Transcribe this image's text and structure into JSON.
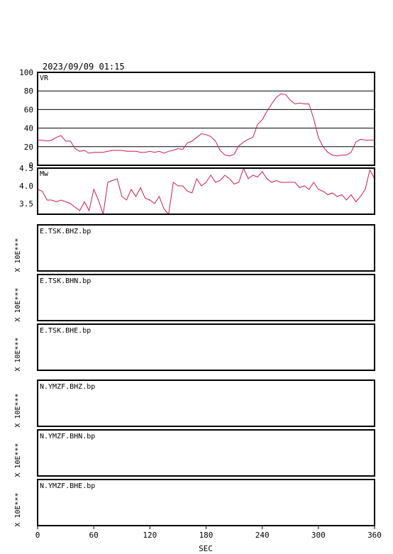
{
  "header": {
    "timestamp": "2023/09/09 01:15"
  },
  "colors": {
    "trace": "#cc1e4a",
    "frame": "#000000",
    "grid": "#000000"
  },
  "chart_data": [
    {
      "type": "line",
      "panel": "vr",
      "label": "VR",
      "ylim": [
        0,
        100
      ],
      "yticks": [
        "100",
        "80",
        "60",
        "40",
        "20",
        "0"
      ],
      "ytick_values": [
        100,
        80,
        60,
        40,
        20,
        0
      ],
      "grid": true,
      "x": [
        0,
        5,
        10,
        15,
        20,
        25,
        30,
        35,
        40,
        45,
        50,
        55,
        60,
        65,
        70,
        75,
        80,
        85,
        90,
        95,
        100,
        105,
        110,
        115,
        120,
        125,
        130,
        135,
        140,
        145,
        150,
        155,
        160,
        165,
        170,
        175,
        180,
        185,
        190,
        195,
        200,
        205,
        210,
        215,
        220,
        225,
        230,
        235,
        240,
        245,
        250,
        255,
        260,
        265,
        270,
        275,
        280,
        285,
        290,
        295,
        300,
        305,
        310,
        315,
        320,
        325,
        330,
        335,
        340,
        345,
        350,
        355,
        360
      ],
      "values": [
        27,
        27,
        26,
        27,
        30,
        32,
        26,
        26,
        18,
        15,
        16,
        13,
        14,
        14,
        14,
        15,
        16,
        16,
        16,
        15,
        15,
        15,
        14,
        14,
        15,
        14,
        15,
        13,
        15,
        16,
        18,
        17,
        24,
        26,
        30,
        34,
        33,
        31,
        26,
        16,
        11,
        10,
        12,
        21,
        25,
        28,
        30,
        44,
        49,
        58,
        66,
        73,
        77,
        76,
        70,
        66,
        67,
        66,
        66,
        50,
        30,
        20,
        14,
        11,
        10,
        11,
        11,
        14,
        25,
        28,
        27,
        27,
        27
      ]
    },
    {
      "type": "line",
      "panel": "mw",
      "label": "Mw",
      "ylim": [
        3.2,
        4.5
      ],
      "yticks": [
        "4.5",
        "4.0",
        "3.5"
      ],
      "ytick_values": [
        4.5,
        4.0,
        3.5
      ],
      "grid": false,
      "x": [
        0,
        5,
        10,
        15,
        20,
        25,
        30,
        35,
        40,
        45,
        50,
        55,
        60,
        65,
        70,
        75,
        80,
        85,
        90,
        95,
        100,
        105,
        110,
        115,
        120,
        125,
        130,
        135,
        140,
        145,
        150,
        155,
        160,
        165,
        170,
        175,
        180,
        185,
        190,
        195,
        200,
        205,
        210,
        215,
        220,
        225,
        230,
        235,
        240,
        245,
        250,
        255,
        260,
        265,
        270,
        275,
        280,
        285,
        290,
        295,
        300,
        305,
        310,
        315,
        320,
        325,
        330,
        335,
        340,
        345,
        350,
        355,
        360
      ],
      "values": [
        3.9,
        3.85,
        3.6,
        3.6,
        3.55,
        3.6,
        3.55,
        3.5,
        3.4,
        3.3,
        3.55,
        3.3,
        3.9,
        3.6,
        3.2,
        4.1,
        4.15,
        4.2,
        3.7,
        3.6,
        3.9,
        3.7,
        3.95,
        3.65,
        3.6,
        3.5,
        3.7,
        3.35,
        3.2,
        4.1,
        4.0,
        4.0,
        3.85,
        3.8,
        4.2,
        4.0,
        4.1,
        4.3,
        4.1,
        4.15,
        4.3,
        4.2,
        4.05,
        4.1,
        4.5,
        4.2,
        4.3,
        4.25,
        4.4,
        4.2,
        4.1,
        4.15,
        4.1,
        4.1,
        4.1,
        4.1,
        3.95,
        4.0,
        3.9,
        4.1,
        3.9,
        3.85,
        3.75,
        3.8,
        3.7,
        3.75,
        3.6,
        3.75,
        3.55,
        3.7,
        3.9,
        4.45,
        4.2
      ]
    }
  ],
  "traces": [
    {
      "label": "E.TSK.BHZ.bp",
      "scale_label": "X 10E***"
    },
    {
      "label": "E.TSK.BHN.bp",
      "scale_label": "X 10E***"
    },
    {
      "label": "E.TSK.BHE.bp",
      "scale_label": "X 10E***"
    },
    {
      "label": "N.YMZF.BHZ.bp",
      "scale_label": "X 10E***"
    },
    {
      "label": "N.YMZF.BHN.bp",
      "scale_label": "X 10E***"
    },
    {
      "label": "N.YMZF.BHE.bp",
      "scale_label": "X 10E***"
    }
  ],
  "x_axis": {
    "label": "SEC",
    "range": [
      0,
      360
    ],
    "ticks": [
      "0",
      "60",
      "120",
      "180",
      "240",
      "300",
      "360"
    ],
    "tick_values": [
      0,
      60,
      120,
      180,
      240,
      300,
      360
    ]
  }
}
